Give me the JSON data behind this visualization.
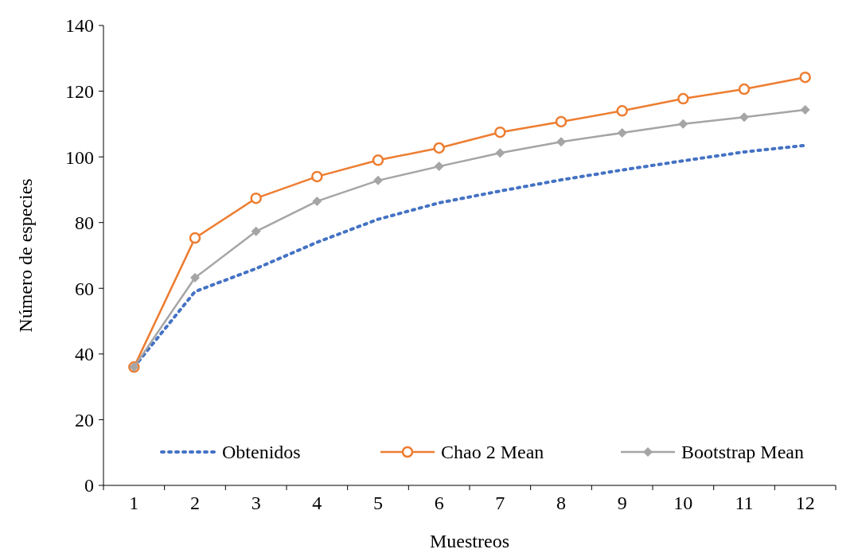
{
  "chart_data": {
    "type": "line",
    "xlabel": "Muestreos",
    "ylabel": "Número de especies",
    "categories": [
      "1",
      "2",
      "3",
      "4",
      "5",
      "6",
      "7",
      "8",
      "9",
      "10",
      "11",
      "12"
    ],
    "ylim": [
      0,
      140
    ],
    "yticks": [
      0,
      20,
      40,
      60,
      80,
      100,
      120,
      140
    ],
    "grid": false,
    "legend": "bottom",
    "series": [
      {
        "name": "Obtenidos",
        "color": "#4472c4",
        "marker": "none",
        "line_style": "dotted",
        "values": [
          36,
          59,
          66,
          74,
          81,
          86,
          89.6,
          93,
          96,
          98.8,
          101.5,
          103.5
        ]
      },
      {
        "name": "Chao 2 Mean",
        "color": "#ed7d31",
        "marker": "circle",
        "line_style": "solid",
        "values": [
          36,
          75.3,
          87.4,
          94,
          99,
          102.7,
          107.5,
          110.7,
          114,
          117.7,
          120.6,
          124.2
        ]
      },
      {
        "name": "Bootstrap Mean",
        "color": "#a5a5a5",
        "marker": "diamond",
        "line_style": "solid",
        "values": [
          36,
          63.2,
          77.3,
          86.5,
          92.8,
          97.1,
          101.2,
          104.6,
          107.3,
          110,
          112.1,
          114.3
        ]
      }
    ]
  }
}
